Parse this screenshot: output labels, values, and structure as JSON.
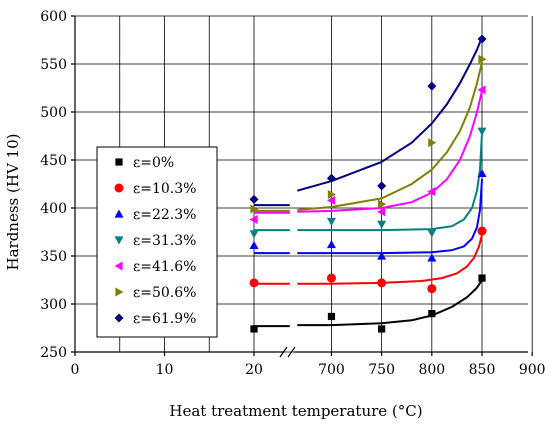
{
  "chart_data": {
    "type": "scatter",
    "title": "",
    "xlabel": "Heat treatment temperature (°C)",
    "ylabel": "Hardness (HV 10)",
    "ylim": [
      250,
      600
    ],
    "y_ticks": [
      250,
      300,
      350,
      400,
      450,
      500,
      550,
      600
    ],
    "x_axis_broken": true,
    "x_ticks_left": [
      0,
      10,
      20
    ],
    "x_ticks_right": [
      700,
      750,
      800,
      850,
      900
    ],
    "x_tick_labels": [
      "0",
      "10",
      "20",
      "700",
      "750",
      "800",
      "850",
      "900"
    ],
    "xlim_left": [
      0,
      25
    ],
    "xlim_right": [
      650,
      900
    ],
    "grid": true,
    "legend_position": "left",
    "series": [
      {
        "name": "ε=0%",
        "color": "#000000",
        "marker": "square",
        "points": [
          [
            20,
            274
          ],
          [
            700,
            287
          ],
          [
            750,
            274
          ],
          [
            800,
            290
          ],
          [
            850,
            327
          ]
        ],
        "fit": [
          [
            20,
            277
          ],
          [
            24,
            277
          ],
          [
            666,
            278
          ],
          [
            700,
            278
          ],
          [
            750,
            280
          ],
          [
            780,
            283
          ],
          [
            800,
            288
          ],
          [
            820,
            297
          ],
          [
            835,
            307
          ],
          [
            845,
            317
          ],
          [
            850,
            325
          ]
        ]
      },
      {
        "name": "ε=10.3%",
        "color": "#ff0000",
        "marker": "circle",
        "points": [
          [
            20,
            322
          ],
          [
            700,
            327
          ],
          [
            750,
            322
          ],
          [
            800,
            316
          ],
          [
            850,
            376
          ]
        ],
        "fit": [
          [
            20,
            321
          ],
          [
            24,
            321
          ],
          [
            666,
            321
          ],
          [
            700,
            321
          ],
          [
            750,
            322
          ],
          [
            790,
            324
          ],
          [
            810,
            327
          ],
          [
            825,
            332
          ],
          [
            835,
            339
          ],
          [
            842,
            348
          ],
          [
            847,
            360
          ],
          [
            850,
            372
          ]
        ]
      },
      {
        "name": "ε=22.3%",
        "color": "#0000ff",
        "marker": "triangle-up",
        "points": [
          [
            20,
            361
          ],
          [
            700,
            362
          ],
          [
            750,
            350
          ],
          [
            800,
            348
          ],
          [
            850,
            436
          ]
        ],
        "fit": [
          [
            20,
            353
          ],
          [
            24,
            353
          ],
          [
            666,
            353
          ],
          [
            700,
            353
          ],
          [
            750,
            353
          ],
          [
            800,
            354
          ],
          [
            820,
            356
          ],
          [
            832,
            360
          ],
          [
            840,
            368
          ],
          [
            845,
            380
          ],
          [
            848,
            398
          ],
          [
            850,
            430
          ]
        ]
      },
      {
        "name": "ε=31.3%",
        "color": "#008080",
        "marker": "triangle-down",
        "points": [
          [
            20,
            373
          ],
          [
            700,
            386
          ],
          [
            750,
            383
          ],
          [
            800,
            374
          ],
          [
            850,
            480
          ]
        ],
        "fit": [
          [
            20,
            377
          ],
          [
            24,
            377
          ],
          [
            666,
            377
          ],
          [
            700,
            377
          ],
          [
            750,
            377
          ],
          [
            800,
            378
          ],
          [
            820,
            381
          ],
          [
            832,
            388
          ],
          [
            840,
            400
          ],
          [
            845,
            418
          ],
          [
            848,
            440
          ],
          [
            850,
            478
          ]
        ]
      },
      {
        "name": "ε=41.6%",
        "color": "#ff00ff",
        "marker": "triangle-left",
        "points": [
          [
            20,
            388
          ],
          [
            700,
            408
          ],
          [
            750,
            396
          ],
          [
            800,
            417
          ],
          [
            850,
            523
          ]
        ],
        "fit": [
          [
            20,
            395
          ],
          [
            24,
            395
          ],
          [
            666,
            396
          ],
          [
            700,
            397
          ],
          [
            750,
            400
          ],
          [
            780,
            406
          ],
          [
            800,
            416
          ],
          [
            815,
            430
          ],
          [
            828,
            450
          ],
          [
            838,
            475
          ],
          [
            845,
            500
          ],
          [
            850,
            522
          ]
        ]
      },
      {
        "name": "ε=50.6%",
        "color": "#808000",
        "marker": "triangle-right",
        "points": [
          [
            20,
            399
          ],
          [
            700,
            414
          ],
          [
            750,
            404
          ],
          [
            800,
            468
          ],
          [
            850,
            555
          ]
        ],
        "fit": [
          [
            20,
            397
          ],
          [
            24,
            397
          ],
          [
            666,
            398
          ],
          [
            700,
            401
          ],
          [
            750,
            410
          ],
          [
            780,
            425
          ],
          [
            800,
            440
          ],
          [
            815,
            458
          ],
          [
            828,
            480
          ],
          [
            838,
            505
          ],
          [
            845,
            530
          ],
          [
            850,
            552
          ]
        ]
      },
      {
        "name": "ε=61.9%",
        "color": "#000080",
        "marker": "diamond",
        "points": [
          [
            20,
            409
          ],
          [
            700,
            431
          ],
          [
            750,
            423
          ],
          [
            800,
            527
          ],
          [
            850,
            576
          ]
        ],
        "fit": [
          [
            20,
            403
          ],
          [
            24,
            403
          ],
          [
            666,
            418
          ],
          [
            700,
            428
          ],
          [
            750,
            448
          ],
          [
            780,
            468
          ],
          [
            800,
            488
          ],
          [
            815,
            508
          ],
          [
            828,
            530
          ],
          [
            838,
            550
          ],
          [
            845,
            565
          ],
          [
            850,
            578
          ]
        ]
      }
    ]
  }
}
